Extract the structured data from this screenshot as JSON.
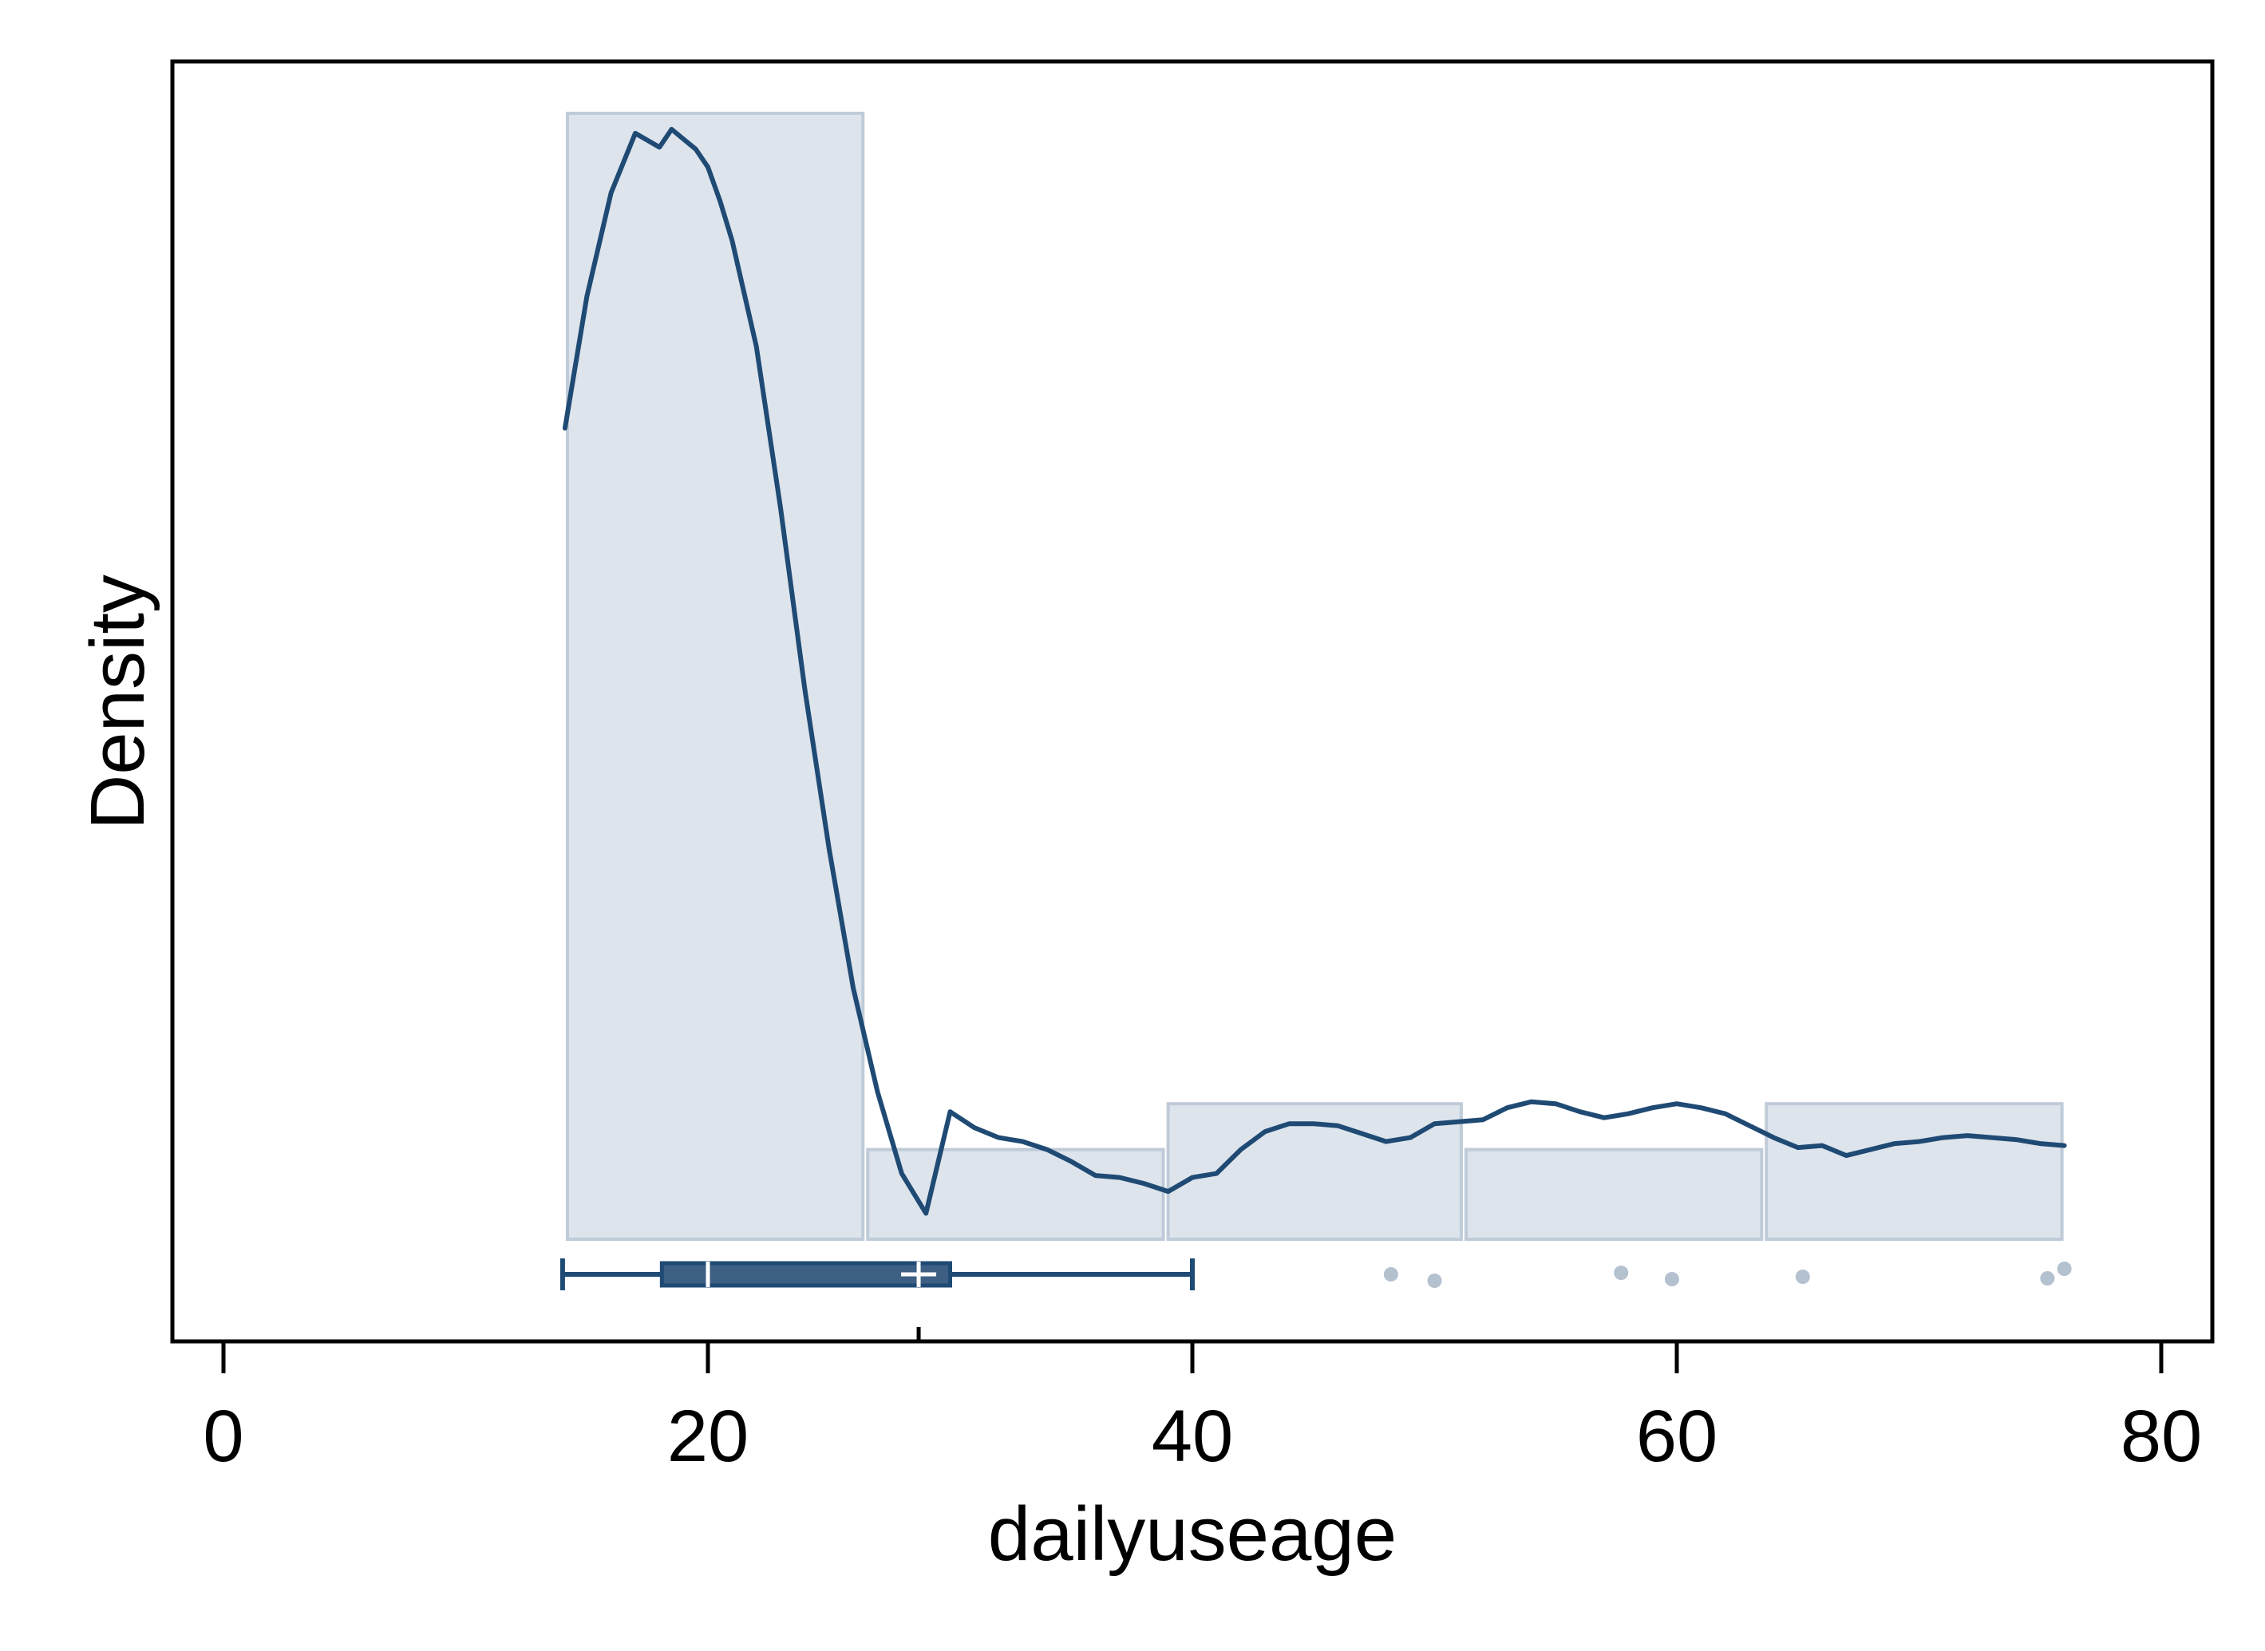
{
  "chart_data": {
    "type": "histogram+density+boxplot",
    "title": "",
    "xlabel": "dailyuseage",
    "ylabel": "Density",
    "xlim": [
      -2,
      82
    ],
    "x_ticks": [
      0,
      20,
      40,
      60,
      80
    ],
    "y_ticks": [],
    "grid": false,
    "legend": "none",
    "colors": {
      "bar_fill": "#dde4ec",
      "bar_stroke": "#bfcbd8",
      "line": "#1f4a74",
      "box_fill": "#3d5f84",
      "outlier": "#b4c1cf",
      "frame": "#000000"
    },
    "histogram": {
      "bins": [
        {
          "x0": 14.1,
          "x1": 26.5,
          "density": 0.0565
        },
        {
          "x0": 26.5,
          "x1": 38.9,
          "density": 0.0045
        },
        {
          "x0": 38.9,
          "x1": 51.2,
          "density": 0.0068
        },
        {
          "x0": 51.2,
          "x1": 63.6,
          "density": 0.0045
        },
        {
          "x0": 63.6,
          "x1": 76.0,
          "density": 0.0068
        }
      ]
    },
    "density_curve": {
      "x": [
        14.1,
        15.0,
        16.0,
        17.0,
        18.0,
        18.5,
        19.0,
        19.5,
        20.0,
        20.5,
        21.0,
        22.0,
        23.0,
        24.0,
        25.0,
        26.0,
        27.0,
        28.0,
        29.0,
        30.0,
        31.0,
        32.0,
        33.0,
        34.0,
        35.0,
        36.0,
        37.0,
        38.0,
        39.0,
        40.0,
        41.0,
        42.0,
        43.0,
        44.0,
        45.0,
        46.0,
        47.0,
        48.0,
        49.0,
        50.0,
        51.0,
        52.0,
        53.0,
        54.0,
        55.0,
        56.0,
        57.0,
        58.0,
        59.0,
        60.0,
        61.0,
        62.0,
        63.0,
        64.0,
        65.0,
        66.0,
        67.0,
        68.0,
        69.0,
        70.0,
        71.0,
        72.0,
        73.0,
        74.0,
        75.0,
        76.0
      ],
      "y": [
        0.0407,
        0.0473,
        0.0525,
        0.0555,
        0.0548,
        0.0557,
        0.0552,
        0.0547,
        0.0538,
        0.0521,
        0.0501,
        0.0448,
        0.0367,
        0.0276,
        0.0196,
        0.0126,
        0.0074,
        0.0033,
        0.0013,
        0.0064,
        0.0056,
        0.0051,
        0.0049,
        0.0045,
        0.0039,
        0.0032,
        0.0031,
        0.0028,
        0.0024,
        0.0031,
        0.0033,
        0.0045,
        0.0054,
        0.0058,
        0.0058,
        0.0057,
        0.0053,
        0.0049,
        0.0051,
        0.0058,
        0.0059,
        0.006,
        0.0066,
        0.0069,
        0.0068,
        0.0064,
        0.0061,
        0.0063,
        0.0066,
        0.0068,
        0.0066,
        0.0063,
        0.0057,
        0.0051,
        0.0046,
        0.0047,
        0.0042,
        0.0045,
        0.0048,
        0.0049,
        0.0051,
        0.0052,
        0.0051,
        0.005,
        0.0048,
        0.0047
      ]
    },
    "boxplot": {
      "whisker_low": 14.0,
      "q1": 18.1,
      "median": 20.0,
      "mean": 28.7,
      "q3": 30.0,
      "whisker_high": 40.0,
      "outliers": [
        48.2,
        50.0,
        57.7,
        59.8,
        65.2,
        75.3,
        76.0
      ]
    }
  }
}
